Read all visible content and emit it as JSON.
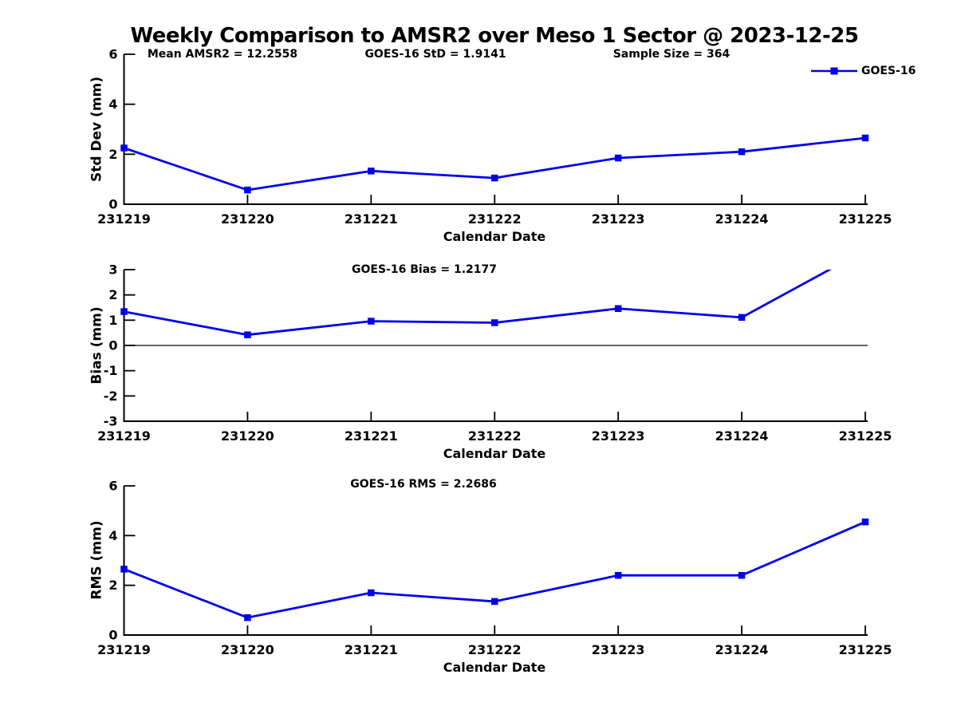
{
  "title": "Weekly Comparison to AMSR2 over Meso 1 Sector @ 2023-12-25",
  "annotations": {
    "mean_amsr2": "Mean AMSR2 = 12.2558",
    "goes16_std": "GOES-16 StD = 1.9141",
    "sample_size": "Sample Size = 364",
    "goes16_bias": "GOES-16 Bias  = 1.2177",
    "goes16_rms": "GOES-16 RMS = 2.2686"
  },
  "legend": {
    "series_label": "GOES-16",
    "position": "top-right"
  },
  "colors": {
    "series": "#0000EE",
    "axis": "#000000",
    "zero_line": "#333333",
    "text": "#000000",
    "background": "#FFFFFF"
  },
  "x_axis": {
    "label": "Calendar Date",
    "categories": [
      "231219",
      "231220",
      "231221",
      "231222",
      "231223",
      "231224",
      "231225"
    ]
  },
  "chart_data": [
    {
      "type": "line",
      "ylabel": "Std Dev (mm)",
      "xlabel": "Calendar Date",
      "ylim": [
        0,
        6
      ],
      "yticks": [
        0,
        2,
        4,
        6
      ],
      "grid": false,
      "categories": [
        "231219",
        "231220",
        "231221",
        "231222",
        "231223",
        "231224",
        "231225"
      ],
      "series": [
        {
          "name": "GOES-16",
          "marker": "square",
          "values": [
            2.25,
            0.57,
            1.33,
            1.05,
            1.85,
            2.1,
            2.65
          ]
        }
      ]
    },
    {
      "type": "line",
      "ylabel": "Bias (mm)",
      "xlabel": "Calendar Date",
      "ylim": [
        -3,
        3
      ],
      "yticks": [
        -3,
        -2,
        -1,
        0,
        1,
        2,
        3
      ],
      "zero_line": true,
      "grid": false,
      "categories": [
        "231219",
        "231220",
        "231221",
        "231222",
        "231223",
        "231224",
        "231225"
      ],
      "series": [
        {
          "name": "GOES-16",
          "marker": "square",
          "values": [
            1.34,
            0.42,
            0.96,
            0.9,
            1.46,
            1.11,
            3.77
          ],
          "clipped_at_ymax": true
        }
      ]
    },
    {
      "type": "line",
      "ylabel": "RMS (mm)",
      "xlabel": "Calendar Date",
      "ylim": [
        0,
        6
      ],
      "yticks": [
        0,
        2,
        4,
        6
      ],
      "grid": false,
      "categories": [
        "231219",
        "231220",
        "231221",
        "231222",
        "231223",
        "231224",
        "231225"
      ],
      "series": [
        {
          "name": "GOES-16",
          "marker": "square",
          "values": [
            2.65,
            0.7,
            1.7,
            1.35,
            2.4,
            2.4,
            4.55
          ]
        }
      ]
    }
  ]
}
